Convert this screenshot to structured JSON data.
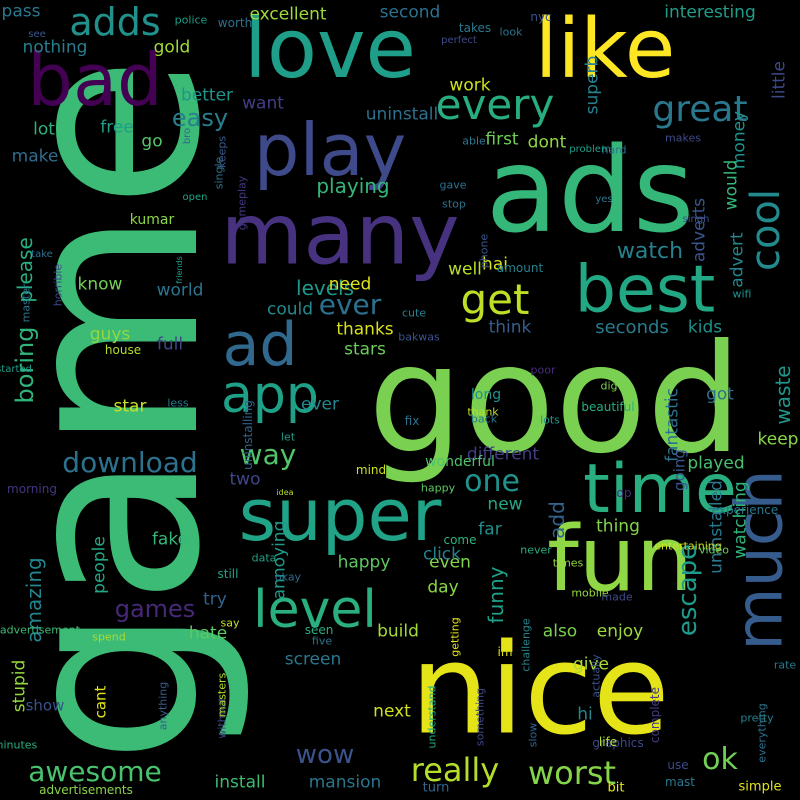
{
  "palette": {
    "background": "#000000"
  },
  "words": [
    {
      "text": "game",
      "color": "#3bbb75",
      "rotate": true
    },
    {
      "text": "good",
      "color": "#7ad151",
      "rotate": false
    },
    {
      "text": "nice",
      "color": "#e5e419",
      "rotate": false
    },
    {
      "text": "ads",
      "color": "#35b779",
      "rotate": false
    },
    {
      "text": "love",
      "color": "#1f9e89",
      "rotate": false
    },
    {
      "text": "like",
      "color": "#fde725",
      "rotate": false
    },
    {
      "text": "many",
      "color": "#46327e",
      "rotate": false
    },
    {
      "text": "fun",
      "color": "#8fd744",
      "rotate": false
    },
    {
      "text": "super",
      "color": "#20a386",
      "rotate": false
    },
    {
      "text": "play",
      "color": "#3e4a89",
      "rotate": false
    },
    {
      "text": "bad",
      "color": "#440154",
      "rotate": false
    },
    {
      "text": "time",
      "color": "#29af7f",
      "rotate": false
    },
    {
      "text": "best",
      "color": "#22a884",
      "rotate": false
    },
    {
      "text": "much",
      "color": "#365c8d",
      "rotate": true
    },
    {
      "text": "ad",
      "color": "#31688e",
      "rotate": false
    },
    {
      "text": "level",
      "color": "#2ab07f",
      "rotate": false
    },
    {
      "text": "app",
      "color": "#1fa188",
      "rotate": false
    },
    {
      "text": "adds",
      "color": "#21918c",
      "rotate": false
    },
    {
      "text": "every",
      "color": "#27ad81",
      "rotate": false
    },
    {
      "text": "get",
      "color": "#bddf26",
      "rotate": false
    },
    {
      "text": "cool",
      "color": "#238a8d",
      "rotate": true
    },
    {
      "text": "great",
      "color": "#2a788e",
      "rotate": false
    },
    {
      "text": "really",
      "color": "#b5de2b",
      "rotate": false
    },
    {
      "text": "worst",
      "color": "#86d549",
      "rotate": false
    },
    {
      "text": "awesome",
      "color": "#4ac16d",
      "rotate": false
    },
    {
      "text": "download",
      "color": "#2c728e",
      "rotate": false
    },
    {
      "text": "way",
      "color": "#52c569",
      "rotate": false
    },
    {
      "text": "one",
      "color": "#20928c",
      "rotate": false
    },
    {
      "text": "ok",
      "color": "#73d056",
      "rotate": false
    },
    {
      "text": "wow",
      "color": "#3b528b",
      "rotate": false
    },
    {
      "text": "ever",
      "color": "#2d708e",
      "rotate": false
    },
    {
      "text": "escape",
      "color": "#1e9b8a",
      "rotate": true
    },
    {
      "text": "games",
      "color": "#482878",
      "rotate": false
    },
    {
      "text": "easy",
      "color": "#277f8e",
      "rotate": false
    },
    {
      "text": "watch",
      "color": "#26828e",
      "rotate": false
    },
    {
      "text": "playing",
      "color": "#34b679",
      "rotate": false
    },
    {
      "text": "levels",
      "color": "#1f998a",
      "rotate": false
    },
    {
      "text": "boring",
      "color": "#2fb47c",
      "rotate": true
    },
    {
      "text": "amazing",
      "color": "#25848e",
      "rotate": true
    },
    {
      "text": "funny",
      "color": "#1fa088",
      "rotate": true
    },
    {
      "text": "waste",
      "color": "#1f968b",
      "rotate": true
    },
    {
      "text": "please",
      "color": "#28ae80",
      "rotate": true
    },
    {
      "text": "add",
      "color": "#33638d",
      "rotate": true
    },
    {
      "text": "seconds",
      "color": "#287c8e",
      "rotate": false
    },
    {
      "text": "excellent",
      "color": "#a0da39",
      "rotate": false
    },
    {
      "text": "install",
      "color": "#3dbc74",
      "rotate": false
    },
    {
      "text": "mansion",
      "color": "#2a768e",
      "rotate": false
    },
    {
      "text": "build",
      "color": "#a5db36",
      "rotate": false
    },
    {
      "text": "also",
      "color": "#7ad151",
      "rotate": false
    },
    {
      "text": "enjoy",
      "color": "#9bd93c",
      "rotate": false
    },
    {
      "text": "give",
      "color": "#a8db34",
      "rotate": false
    },
    {
      "text": "hi",
      "color": "#24878e",
      "rotate": false
    },
    {
      "text": "happy",
      "color": "#5cc863",
      "rotate": false
    },
    {
      "text": "even",
      "color": "#84d44b",
      "rotate": false
    },
    {
      "text": "day",
      "color": "#8bd646",
      "rotate": false
    },
    {
      "text": "try",
      "color": "#33638d",
      "rotate": false
    },
    {
      "text": "hate",
      "color": "#5ec962",
      "rotate": false
    },
    {
      "text": "people",
      "color": "#22a785",
      "rotate": true
    },
    {
      "text": "stupid",
      "color": "#95d840",
      "rotate": true
    },
    {
      "text": "star",
      "color": "#cae11f",
      "rotate": false
    },
    {
      "text": "got",
      "color": "#2e6f8e",
      "rotate": false
    },
    {
      "text": "ever",
      "color": "#24868e",
      "rotate": false
    },
    {
      "text": "stars",
      "color": "#6ccd5a",
      "rotate": false
    },
    {
      "text": "first",
      "color": "#6ece58",
      "rotate": false
    },
    {
      "text": "dont",
      "color": "#90d743",
      "rotate": false
    },
    {
      "text": "free",
      "color": "#1f9e89",
      "rotate": false
    },
    {
      "text": "go",
      "color": "#56c667",
      "rotate": false
    },
    {
      "text": "lot",
      "color": "#2db27d",
      "rotate": false
    },
    {
      "text": "make",
      "color": "#2f6c8e",
      "rotate": false
    },
    {
      "text": "want",
      "color": "#433e85",
      "rotate": false
    },
    {
      "text": "better",
      "color": "#1f958b",
      "rotate": false
    },
    {
      "text": "nothing",
      "color": "#287d8e",
      "rotate": false
    },
    {
      "text": "gold",
      "color": "#a2da37",
      "rotate": false
    },
    {
      "text": "pass",
      "color": "#2a788e",
      "rotate": false
    },
    {
      "text": "second",
      "color": "#2c718e",
      "rotate": false
    },
    {
      "text": "interesting",
      "color": "#1f9e89",
      "rotate": false
    },
    {
      "text": "work",
      "color": "#cde11d",
      "rotate": false
    },
    {
      "text": "uninstall",
      "color": "#2d708e",
      "rotate": false
    },
    {
      "text": "superb",
      "color": "#26828e",
      "rotate": true
    },
    {
      "text": "little",
      "color": "#3e4989",
      "rotate": true
    },
    {
      "text": "money",
      "color": "#20928c",
      "rotate": true
    },
    {
      "text": "need",
      "color": "#dde318",
      "rotate": false
    },
    {
      "text": "could",
      "color": "#238a8d",
      "rotate": false
    },
    {
      "text": "thanks",
      "color": "#d8e219",
      "rotate": false
    },
    {
      "text": "think",
      "color": "#365d8d",
      "rotate": false
    },
    {
      "text": "kids",
      "color": "#21908d",
      "rotate": false
    },
    {
      "text": "know",
      "color": "#75d054",
      "rotate": false
    },
    {
      "text": "world",
      "color": "#2b758e",
      "rotate": false
    },
    {
      "text": "full",
      "color": "#3f4889",
      "rotate": false
    },
    {
      "text": "guys",
      "color": "#93d741",
      "rotate": false
    },
    {
      "text": "house",
      "color": "#b2dd2d",
      "rotate": false
    },
    {
      "text": "hai",
      "color": "#dae319",
      "rotate": false
    },
    {
      "text": "well",
      "color": "#b8de29",
      "rotate": false
    },
    {
      "text": "fantastic",
      "color": "#2c718e",
      "rotate": true
    },
    {
      "text": "adverts",
      "color": "#3a548c",
      "rotate": true
    },
    {
      "text": "advert",
      "color": "#24868e",
      "rotate": true
    },
    {
      "text": "would",
      "color": "#35b779",
      "rotate": true
    },
    {
      "text": "keep",
      "color": "#8bd646",
      "rotate": false
    },
    {
      "text": "long",
      "color": "#21918c",
      "rotate": false
    },
    {
      "text": "thank",
      "color": "#bade28",
      "rotate": false
    },
    {
      "text": "new",
      "color": "#22a785",
      "rotate": false
    },
    {
      "text": "far",
      "color": "#21918c",
      "rotate": false
    },
    {
      "text": "different",
      "color": "#433e85",
      "rotate": false
    },
    {
      "text": "wonderful",
      "color": "#4ec36b",
      "rotate": false
    },
    {
      "text": "played",
      "color": "#46c06f",
      "rotate": false
    },
    {
      "text": "thing",
      "color": "#84d44b",
      "rotate": false
    },
    {
      "text": "uninstalled",
      "color": "#2a788e",
      "rotate": true
    },
    {
      "text": "watching",
      "color": "#2fb47c",
      "rotate": true
    },
    {
      "text": "going",
      "color": "#39568c",
      "rotate": true
    },
    {
      "text": "annoying",
      "color": "#1f9a8a",
      "rotate": true
    },
    {
      "text": "screen",
      "color": "#2a778e",
      "rotate": false
    },
    {
      "text": "next",
      "color": "#d0e11c",
      "rotate": false
    },
    {
      "text": "click",
      "color": "#26828e",
      "rotate": false
    },
    {
      "text": "two",
      "color": "#3f4788",
      "rotate": false
    },
    {
      "text": "mind",
      "color": "#cde11d",
      "rotate": false
    },
    {
      "text": "happy",
      "color": "#5cc863",
      "rotate": false
    },
    {
      "text": "op",
      "color": "#472d7b",
      "rotate": false
    },
    {
      "text": "experience",
      "color": "#2a788e",
      "rotate": false
    },
    {
      "text": "fake",
      "color": "#35b779",
      "rotate": false
    },
    {
      "text": "data",
      "color": "#20a386",
      "rotate": false
    },
    {
      "text": "still",
      "color": "#20a486",
      "rotate": false
    },
    {
      "text": "okay",
      "color": "#2e6e8e",
      "rotate": false
    },
    {
      "text": "say",
      "color": "#c5e021",
      "rotate": false
    },
    {
      "text": "spend",
      "color": "#a8db34",
      "rotate": false
    },
    {
      "text": "cant",
      "color": "#e2e418",
      "rotate": true
    },
    {
      "text": "without",
      "color": "#3e4a89",
      "rotate": true
    },
    {
      "text": "masters",
      "color": "#b2dd2d",
      "rotate": true
    },
    {
      "text": "anything",
      "color": "#355e8d",
      "rotate": true
    },
    {
      "text": "show",
      "color": "#3b528b",
      "rotate": false
    },
    {
      "text": "advertisement",
      "color": "#3bbb75",
      "rotate": false
    },
    {
      "text": "minutes",
      "color": "#29af7f",
      "rotate": false
    },
    {
      "text": "advertisements",
      "color": "#89d548",
      "rotate": false
    },
    {
      "text": "turn",
      "color": "#31688e",
      "rotate": false
    },
    {
      "text": "bit",
      "color": "#e7e419",
      "rotate": false
    },
    {
      "text": "mast",
      "color": "#2a788e",
      "rotate": false
    },
    {
      "text": "use",
      "color": "#3e4989",
      "rotate": false
    },
    {
      "text": "graphics",
      "color": "#3e4989",
      "rotate": false
    },
    {
      "text": "life",
      "color": "#b5de2b",
      "rotate": false
    },
    {
      "text": "simple",
      "color": "#dfe318",
      "rotate": false
    },
    {
      "text": "everything",
      "color": "#2c728e",
      "rotate": true
    },
    {
      "text": "complete",
      "color": "#443983",
      "rotate": true
    },
    {
      "text": "pretty",
      "color": "#26828e",
      "rotate": false
    },
    {
      "text": "rate",
      "color": "#2a788e",
      "rotate": false
    },
    {
      "text": "seen",
      "color": "#27ad81",
      "rotate": false
    },
    {
      "text": "five",
      "color": "#2c728e",
      "rotate": false
    },
    {
      "text": "getting",
      "color": "#e5e419",
      "rotate": true
    },
    {
      "text": "actually",
      "color": "#3a548c",
      "rotate": true
    },
    {
      "text": "understand",
      "color": "#22a785",
      "rotate": true
    },
    {
      "text": "something",
      "color": "#3f4788",
      "rotate": true
    },
    {
      "text": "slow",
      "color": "#33638d",
      "rotate": true
    },
    {
      "text": "challenge",
      "color": "#25848e",
      "rotate": true
    },
    {
      "text": "im",
      "color": "#dde318",
      "rotate": false
    },
    {
      "text": "times",
      "color": "#93d741",
      "rotate": false
    },
    {
      "text": "mobile",
      "color": "#95d840",
      "rotate": false
    },
    {
      "text": "made",
      "color": "#3e4a89",
      "rotate": false
    },
    {
      "text": "entertaining",
      "color": "#cde11d",
      "rotate": false
    },
    {
      "text": "video",
      "color": "#6ccd5a",
      "rotate": false
    },
    {
      "text": "come",
      "color": "#2db27d",
      "rotate": false
    },
    {
      "text": "never",
      "color": "#27ad81",
      "rotate": false
    },
    {
      "text": "idea",
      "color": "#b5de2b",
      "rotate": false
    },
    {
      "text": "let",
      "color": "#1f9a8a",
      "rotate": false
    },
    {
      "text": "uninstalling",
      "color": "#33638d",
      "rotate": true
    },
    {
      "text": "fix",
      "color": "#2c728e",
      "rotate": false
    },
    {
      "text": "back",
      "color": "#2a788e",
      "rotate": false
    },
    {
      "text": "beautiful",
      "color": "#29af7f",
      "rotate": false
    },
    {
      "text": "dig",
      "color": "#7ad151",
      "rotate": false
    },
    {
      "text": "poor",
      "color": "#472d7b",
      "rotate": false
    },
    {
      "text": "lots",
      "color": "#1f968b",
      "rotate": false
    },
    {
      "text": "less",
      "color": "#2a788e",
      "rotate": false
    },
    {
      "text": "morning",
      "color": "#463480",
      "rotate": false
    },
    {
      "text": "bakwas",
      "color": "#3b528b",
      "rotate": false
    },
    {
      "text": "cute",
      "color": "#26828e",
      "rotate": false
    },
    {
      "text": "master",
      "color": "#2a778e",
      "rotate": true
    },
    {
      "text": "horrible",
      "color": "#3e4989",
      "rotate": true
    },
    {
      "text": "friends",
      "color": "#1f9e89",
      "rotate": true
    },
    {
      "text": "phone",
      "color": "#39568c",
      "rotate": true
    },
    {
      "text": "amount",
      "color": "#26828e",
      "rotate": false
    },
    {
      "text": "wifi",
      "color": "#21918c",
      "rotate": false
    },
    {
      "text": "take",
      "color": "#2c728e",
      "rotate": false
    },
    {
      "text": "started",
      "color": "#1f9e89",
      "rotate": false
    },
    {
      "text": "open",
      "color": "#20a386",
      "rotate": false
    },
    {
      "text": "kumar",
      "color": "#8bd646",
      "rotate": false
    },
    {
      "text": "gameplay",
      "color": "#443983",
      "rotate": true
    },
    {
      "text": "single",
      "color": "#2c728e",
      "rotate": true
    },
    {
      "text": "keeps",
      "color": "#365c8d",
      "rotate": true
    },
    {
      "text": "bro",
      "color": "#31688e",
      "rotate": true
    },
    {
      "text": "gave",
      "color": "#2c728e",
      "rotate": false
    },
    {
      "text": "stop",
      "color": "#2c728e",
      "rotate": false
    },
    {
      "text": "singh",
      "color": "#3b528b",
      "rotate": false
    },
    {
      "text": "yes",
      "color": "#2a788e",
      "rotate": false
    },
    {
      "text": "hard",
      "color": "#2c728e",
      "rotate": false
    },
    {
      "text": "problem",
      "color": "#1f9e89",
      "rotate": false
    },
    {
      "text": "able",
      "color": "#2a788e",
      "rotate": false
    },
    {
      "text": "makes",
      "color": "#3e4989",
      "rotate": false
    },
    {
      "text": "see",
      "color": "#39568c",
      "rotate": false
    },
    {
      "text": "worth",
      "color": "#2c728e",
      "rotate": false
    },
    {
      "text": "police",
      "color": "#1f9e89",
      "rotate": false
    },
    {
      "text": "takes",
      "color": "#2a788e",
      "rotate": false
    },
    {
      "text": "perfect",
      "color": "#3e4989",
      "rotate": false
    },
    {
      "text": "look",
      "color": "#2c728e",
      "rotate": false
    },
    {
      "text": "nyc",
      "color": "#3b528b",
      "rotate": false
    }
  ]
}
